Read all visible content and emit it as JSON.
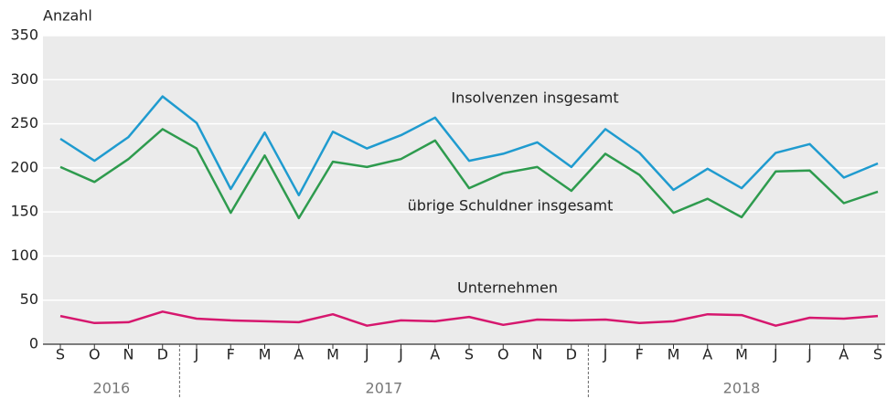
{
  "chart_data": {
    "type": "line",
    "y_label": "Anzahl",
    "categories": [
      "S",
      "O",
      "N",
      "D",
      "J",
      "F",
      "M",
      "A",
      "M",
      "J",
      "J",
      "A",
      "S",
      "O",
      "N",
      "D",
      "J",
      "F",
      "M",
      "A",
      "M",
      "J",
      "J",
      "A",
      "S"
    ],
    "year_groups": [
      "2016",
      "2017",
      "2018"
    ],
    "series": [
      {
        "name": "Insolvenzen insgesamt",
        "color": "#1f9bcf",
        "values": [
          233,
          208,
          235,
          281,
          251,
          176,
          240,
          169,
          241,
          222,
          237,
          257,
          208,
          216,
          229,
          201,
          244,
          217,
          175,
          199,
          177,
          217,
          227,
          189,
          205
        ]
      },
      {
        "name": "übrige Schuldner insgesamt",
        "color": "#2e9b4e",
        "values": [
          201,
          184,
          210,
          244,
          222,
          149,
          214,
          143,
          207,
          201,
          210,
          231,
          177,
          194,
          201,
          174,
          216,
          192,
          149,
          165,
          144,
          196,
          197,
          160,
          173
        ]
      },
      {
        "name": "Unternehmen",
        "color": "#d6176e",
        "values": [
          32,
          24,
          25,
          37,
          29,
          27,
          26,
          25,
          34,
          21,
          27,
          26,
          31,
          22,
          28,
          27,
          28,
          24,
          26,
          34,
          33,
          21,
          30,
          29,
          32
        ]
      }
    ],
    "ylim": [
      0,
      350
    ],
    "yticks": [
      0,
      50,
      100,
      150,
      200,
      250,
      300,
      350
    ],
    "grid": true
  }
}
